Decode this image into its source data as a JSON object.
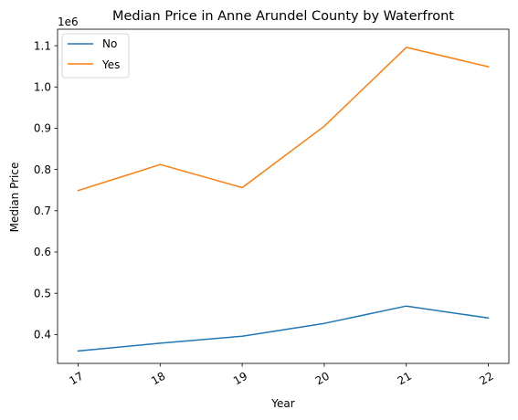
{
  "chart_data": {
    "type": "line",
    "title": "Median Price in Anne Arundel County by Waterfront",
    "xlabel": "Year",
    "ylabel": "Median Price",
    "x": [
      "17",
      "18",
      "19",
      "20",
      "21",
      "22"
    ],
    "y_offset_text": "1e6",
    "ylim": [
      0.33,
      1.14
    ],
    "yticks": [
      0.4,
      0.5,
      0.6,
      0.7,
      0.8,
      0.9,
      1.0,
      1.1
    ],
    "ytick_labels": [
      "0.4",
      "0.5",
      "0.6",
      "0.7",
      "0.8",
      "0.9",
      "1.0",
      "1.1"
    ],
    "xtick_rotation": "30deg",
    "grid": false,
    "legend_position": "upper-left",
    "series": [
      {
        "name": "No",
        "color": "#1f77b4",
        "values": [
          0.36,
          0.379,
          0.396,
          0.427,
          0.469,
          0.44
        ]
      },
      {
        "name": "Yes",
        "color": "#ff7f0e",
        "values": [
          0.749,
          0.812,
          0.756,
          0.905,
          1.096,
          1.049
        ]
      }
    ]
  }
}
